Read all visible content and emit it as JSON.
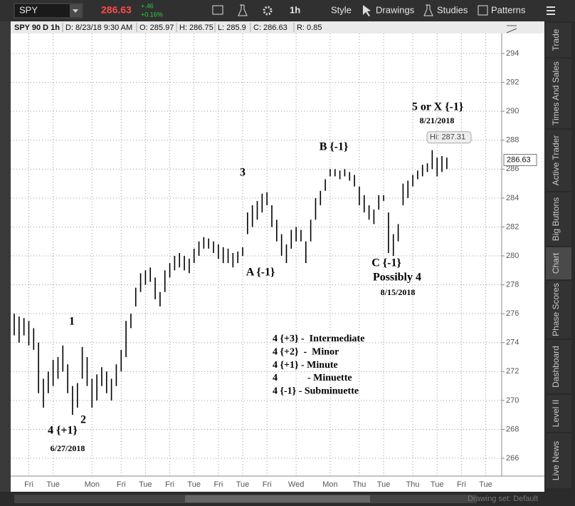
{
  "toolbar": {
    "symbol": "SPY",
    "last": "286.63",
    "change": "+.46",
    "change_pct": "+0.16%",
    "interval": "1h",
    "buttons": [
      "Style",
      "Drawings",
      "Studies",
      "Patterns"
    ]
  },
  "info_bar": [
    "SPY 90 D 1h",
    "D: 8/23/18 9:30 AM",
    "O: 285.97",
    "H: 286.75",
    "L: 285.9",
    "C: 286.63",
    "R: 0.85"
  ],
  "side_tabs": [
    "Trade",
    "Times And Sales",
    "Active Trader",
    "Big Buttons",
    "Chart",
    "Phase Scores",
    "Dashboard",
    "Level II",
    "Live News"
  ],
  "footer": "Drawing set: Default",
  "chart_data": {
    "type": "range-bar",
    "color": "#000000",
    "grid": true,
    "categories": [
      null,
      null,
      null,
      "Fri",
      null,
      null,
      null,
      null,
      "Tue",
      null,
      null,
      null,
      null,
      null,
      null,
      null,
      "Mon",
      null,
      null,
      null,
      null,
      null,
      "Fri",
      null,
      null,
      null,
      null,
      "Tue",
      null,
      null,
      null,
      null,
      "Fri",
      null,
      null,
      null,
      null,
      "Tue",
      null,
      null,
      null,
      null,
      "Fri",
      null,
      null,
      null,
      null,
      "Tue",
      null,
      null,
      null,
      null,
      "Fri",
      null,
      null,
      null,
      null,
      null,
      "Wed",
      null,
      null,
      null,
      null,
      null,
      null,
      "Mon",
      null,
      null,
      null,
      null,
      null,
      "Thu",
      null,
      null,
      null,
      null,
      "Tue",
      null,
      null,
      null,
      null,
      null,
      "Thu",
      null,
      null,
      null,
      null,
      "Tue",
      null,
      null,
      null,
      null,
      "Fri",
      null,
      null,
      null,
      null,
      "Tue",
      null
    ],
    "highs": [
      276,
      275.8,
      275.7,
      275.5,
      275,
      274,
      271.5,
      272,
      272.8,
      273,
      273.8,
      272.5,
      271,
      271.2,
      273.7,
      273,
      271.5,
      271.8,
      272.3,
      272,
      271.5,
      272.5,
      273.5,
      275.5,
      276,
      277.8,
      278.8,
      279,
      279.2,
      278.5,
      277.5,
      279,
      279.5,
      280,
      280.2,
      280,
      279.8,
      280.5,
      281,
      281.3,
      281.2,
      281,
      280.8,
      280.6,
      280.5,
      280.2,
      280.3,
      280.6,
      283,
      283.5,
      283.8,
      284.3,
      284.4,
      283.5,
      282.5,
      281.5,
      280.8,
      281.8,
      282,
      281.8,
      281,
      282.5,
      284,
      284.5,
      285.3,
      286,
      286,
      285.9,
      286,
      285.8,
      285.6,
      284.8,
      284.2,
      283.5,
      283.2,
      284.2,
      284.2,
      283,
      281.5,
      282.2,
      285,
      285.2,
      285.6,
      285.9,
      286.3,
      286.4,
      287.31,
      286.8,
      286.9,
      286.8,
      null,
      null,
      null,
      null,
      null,
      null,
      null,
      null,
      null
    ],
    "lows": [
      274.5,
      274,
      274.5,
      273.8,
      273.5,
      270.5,
      269.5,
      270.5,
      271,
      271.5,
      272,
      270.5,
      269,
      269.5,
      271.5,
      271,
      269.5,
      270,
      271,
      270.5,
      270,
      271,
      272,
      273,
      275,
      276.5,
      277.5,
      278,
      278.2,
      277,
      276.5,
      277.5,
      278.5,
      279,
      279.2,
      279,
      278.8,
      279.5,
      280,
      280.5,
      280.5,
      280.2,
      279.8,
      279.5,
      279.5,
      279.2,
      279.5,
      280,
      281.5,
      282,
      282.5,
      283,
      283.5,
      282,
      281,
      280,
      279.5,
      280.5,
      281,
      281,
      279.5,
      281,
      282.5,
      283.5,
      284.5,
      285.5,
      285.5,
      285.3,
      285.5,
      285.2,
      284.8,
      283.5,
      283,
      282.5,
      282.2,
      283.2,
      283.8,
      280.2,
      280,
      281,
      283.5,
      284,
      284.8,
      285.3,
      285.5,
      285.8,
      286,
      285.5,
      285.8,
      286,
      null,
      null,
      null,
      null,
      null,
      null,
      null,
      null,
      null
    ],
    "ylim": [
      264.77,
      295.38
    ],
    "yticks": [
      266,
      268,
      270,
      272,
      274,
      276,
      278,
      280,
      282,
      284,
      286,
      288,
      290,
      292,
      294
    ],
    "last_price": 286.63,
    "high_marker": {
      "value": 287.31,
      "label": "Hi: 287.31"
    },
    "annotations": [
      "1",
      "2",
      "3",
      "4 {+1}",
      "6/27/2018",
      "A {-1}",
      "B {-1}",
      "C {-1}",
      "Possibly 4",
      "8/15/2018",
      "5 or X {-1}",
      "8/21/2018"
    ],
    "legend_notes": [
      "4 {+3} -  Intermediate",
      "4 {+2}  -  Minor",
      "4 {+1} - Minute",
      "4            - Minuette",
      "4 {-1} - Subminuette"
    ]
  }
}
